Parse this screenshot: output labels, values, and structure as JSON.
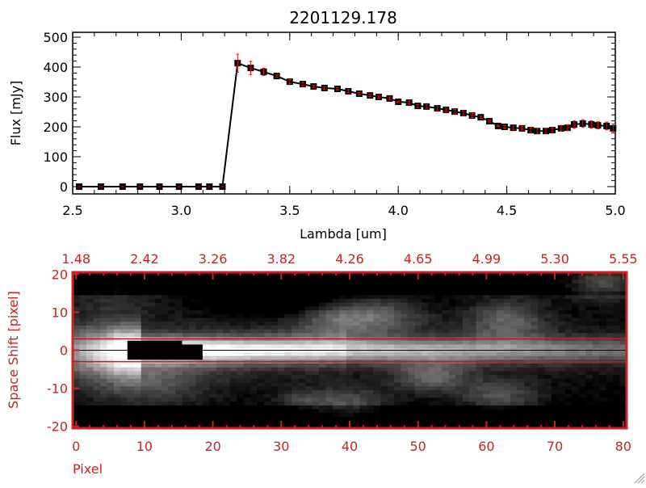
{
  "chart_data": [
    {
      "type": "line",
      "title": "2201129.178",
      "xlabel": "Lambda [um]",
      "ylabel": "Flux [mJy]",
      "xlim": [
        2.5,
        5.0
      ],
      "ylim": [
        -20,
        510
      ],
      "xticks": [
        "2.5",
        "3.0",
        "3.5",
        "4.0",
        "4.5",
        "5.0"
      ],
      "xtick_values": [
        2.5,
        3.0,
        3.5,
        4.0,
        4.5,
        5.0
      ],
      "yticks": [
        "0",
        "100",
        "200",
        "300",
        "400",
        "500"
      ],
      "ytick_values": [
        0,
        100,
        200,
        300,
        400,
        500
      ],
      "series": [
        {
          "name": "flux",
          "x": [
            2.53,
            2.63,
            2.73,
            2.81,
            2.9,
            2.99,
            3.08,
            3.13,
            3.19,
            3.26,
            3.32,
            3.38,
            3.44,
            3.5,
            3.56,
            3.61,
            3.66,
            3.72,
            3.77,
            3.82,
            3.87,
            3.91,
            3.96,
            4.0,
            4.05,
            4.09,
            4.13,
            4.18,
            4.22,
            4.26,
            4.3,
            4.34,
            4.38,
            4.42,
            4.46,
            4.49,
            4.53,
            4.57,
            4.61,
            4.64,
            4.68,
            4.71,
            4.75,
            4.78,
            4.81,
            4.85,
            4.89,
            4.92,
            4.96,
            4.99
          ],
          "y": [
            0,
            0,
            0,
            0,
            0,
            0,
            0,
            0,
            0,
            413,
            397,
            384,
            370,
            351,
            343,
            335,
            330,
            327,
            319,
            311,
            305,
            300,
            295,
            284,
            281,
            270,
            268,
            262,
            257,
            251,
            246,
            238,
            232,
            219,
            203,
            200,
            197,
            195,
            189,
            186,
            186,
            189,
            195,
            197,
            208,
            211,
            208,
            205,
            203,
            195
          ],
          "yerr": [
            0,
            0,
            0,
            0,
            0,
            0,
            0,
            0,
            0,
            30,
            22,
            12,
            4,
            7,
            6,
            4,
            4,
            4,
            5,
            4,
            4,
            5,
            5,
            2,
            5,
            5,
            6,
            6,
            6,
            7,
            8,
            7,
            4,
            3,
            2,
            4,
            6,
            6,
            7,
            8,
            8,
            7,
            8,
            10,
            12,
            13,
            12,
            12,
            13,
            15
          ]
        }
      ]
    },
    {
      "type": "heatmap",
      "xlabel": "Pixel",
      "ylabel": "Space Shift [pixel]",
      "xlim": [
        0,
        81
      ],
      "ylim": [
        -21,
        21
      ],
      "xticks": [
        "0",
        "10",
        "20",
        "30",
        "40",
        "50",
        "60",
        "70",
        "80"
      ],
      "xtick_values": [
        0,
        10,
        20,
        30,
        40,
        50,
        60,
        70,
        80
      ],
      "yticks": [
        "-20",
        "-10",
        "0",
        "10",
        "20"
      ],
      "ytick_values": [
        -20,
        -10,
        0,
        10,
        20
      ],
      "top_axis_labels": [
        "1.48",
        "2.42",
        "3.26",
        "3.82",
        "4.26",
        "4.65",
        "4.99",
        "5.30",
        "5.55"
      ],
      "extraction_window": [
        -3,
        3
      ],
      "trace_center": 0
    }
  ],
  "colors": {
    "axis_top": "#000000",
    "axis_bottom": "#cc2222",
    "errorbar": "#ff0000",
    "window": "#ff0000"
  }
}
